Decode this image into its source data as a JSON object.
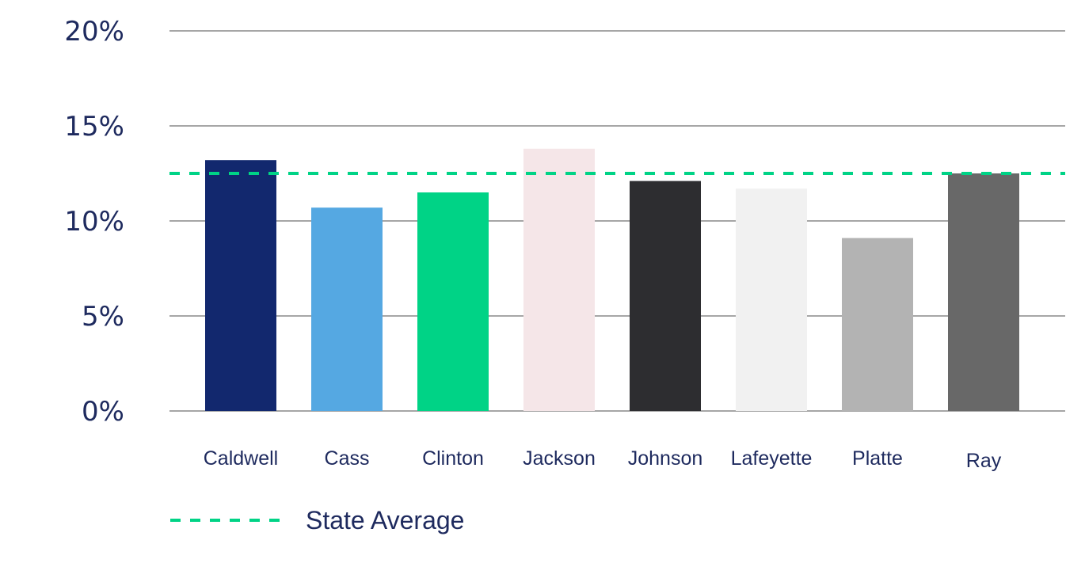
{
  "chart_data": {
    "type": "bar",
    "categories": [
      "Caldwell",
      "Cass",
      "Clinton",
      "Jackson",
      "Johnson",
      "Lafeyette",
      "Platte",
      "Ray"
    ],
    "values": [
      13.2,
      10.7,
      11.5,
      13.8,
      12.1,
      11.7,
      9.1,
      12.5
    ],
    "bar_colors": [
      "#12286e",
      "#55a8e2",
      "#00d386",
      "#f5e6e8",
      "#2d2d30",
      "#f1f1f1",
      "#b3b3b3",
      "#686868"
    ],
    "ylim": [
      0,
      20
    ],
    "yticks": [
      0,
      5,
      10,
      15,
      20
    ],
    "ytick_labels": [
      "0%",
      "5%",
      "10%",
      "15%",
      "20%"
    ],
    "grid": true,
    "reference_line": {
      "name": "State Average",
      "value": 12.5,
      "color": "#00d386",
      "style": "dashed"
    },
    "legend": {
      "placement": "bottom-left",
      "entries": [
        "State Average"
      ]
    }
  }
}
